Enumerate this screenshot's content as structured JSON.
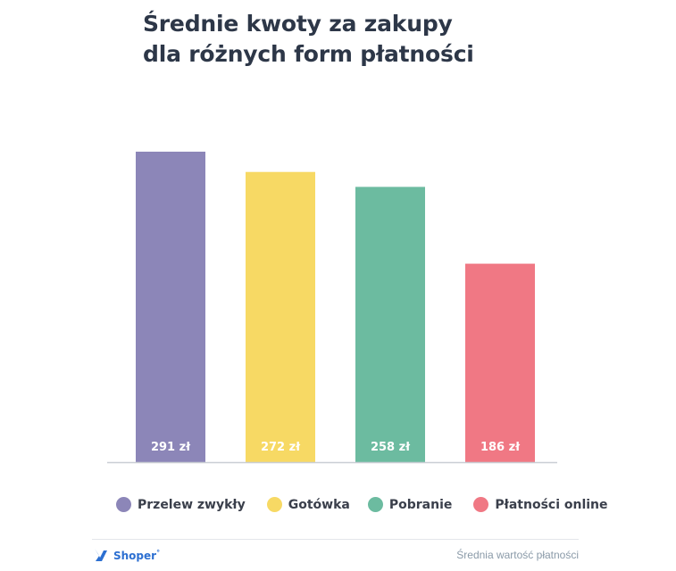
{
  "chart_data": {
    "type": "bar",
    "title_lines": [
      "Średnie kwoty za zakupy",
      "dla różnych form płatności"
    ],
    "categories": [
      "Przelew zwykły",
      "Gotówka",
      "Pobranie",
      "Płatności online"
    ],
    "values": [
      291,
      272,
      258,
      186
    ],
    "value_labels": [
      "291 zł",
      "272 zł",
      "258 zł",
      "186 zł"
    ],
    "colors": [
      "#8c86b8",
      "#f7d964",
      "#6cbba0",
      "#f07884"
    ],
    "ylim": [
      0,
      291
    ],
    "grid": false,
    "legend_position": "bottom"
  },
  "brand": {
    "name": "Shoper",
    "mark": "°"
  },
  "footer": {
    "note": "Średnia wartość płatności"
  }
}
